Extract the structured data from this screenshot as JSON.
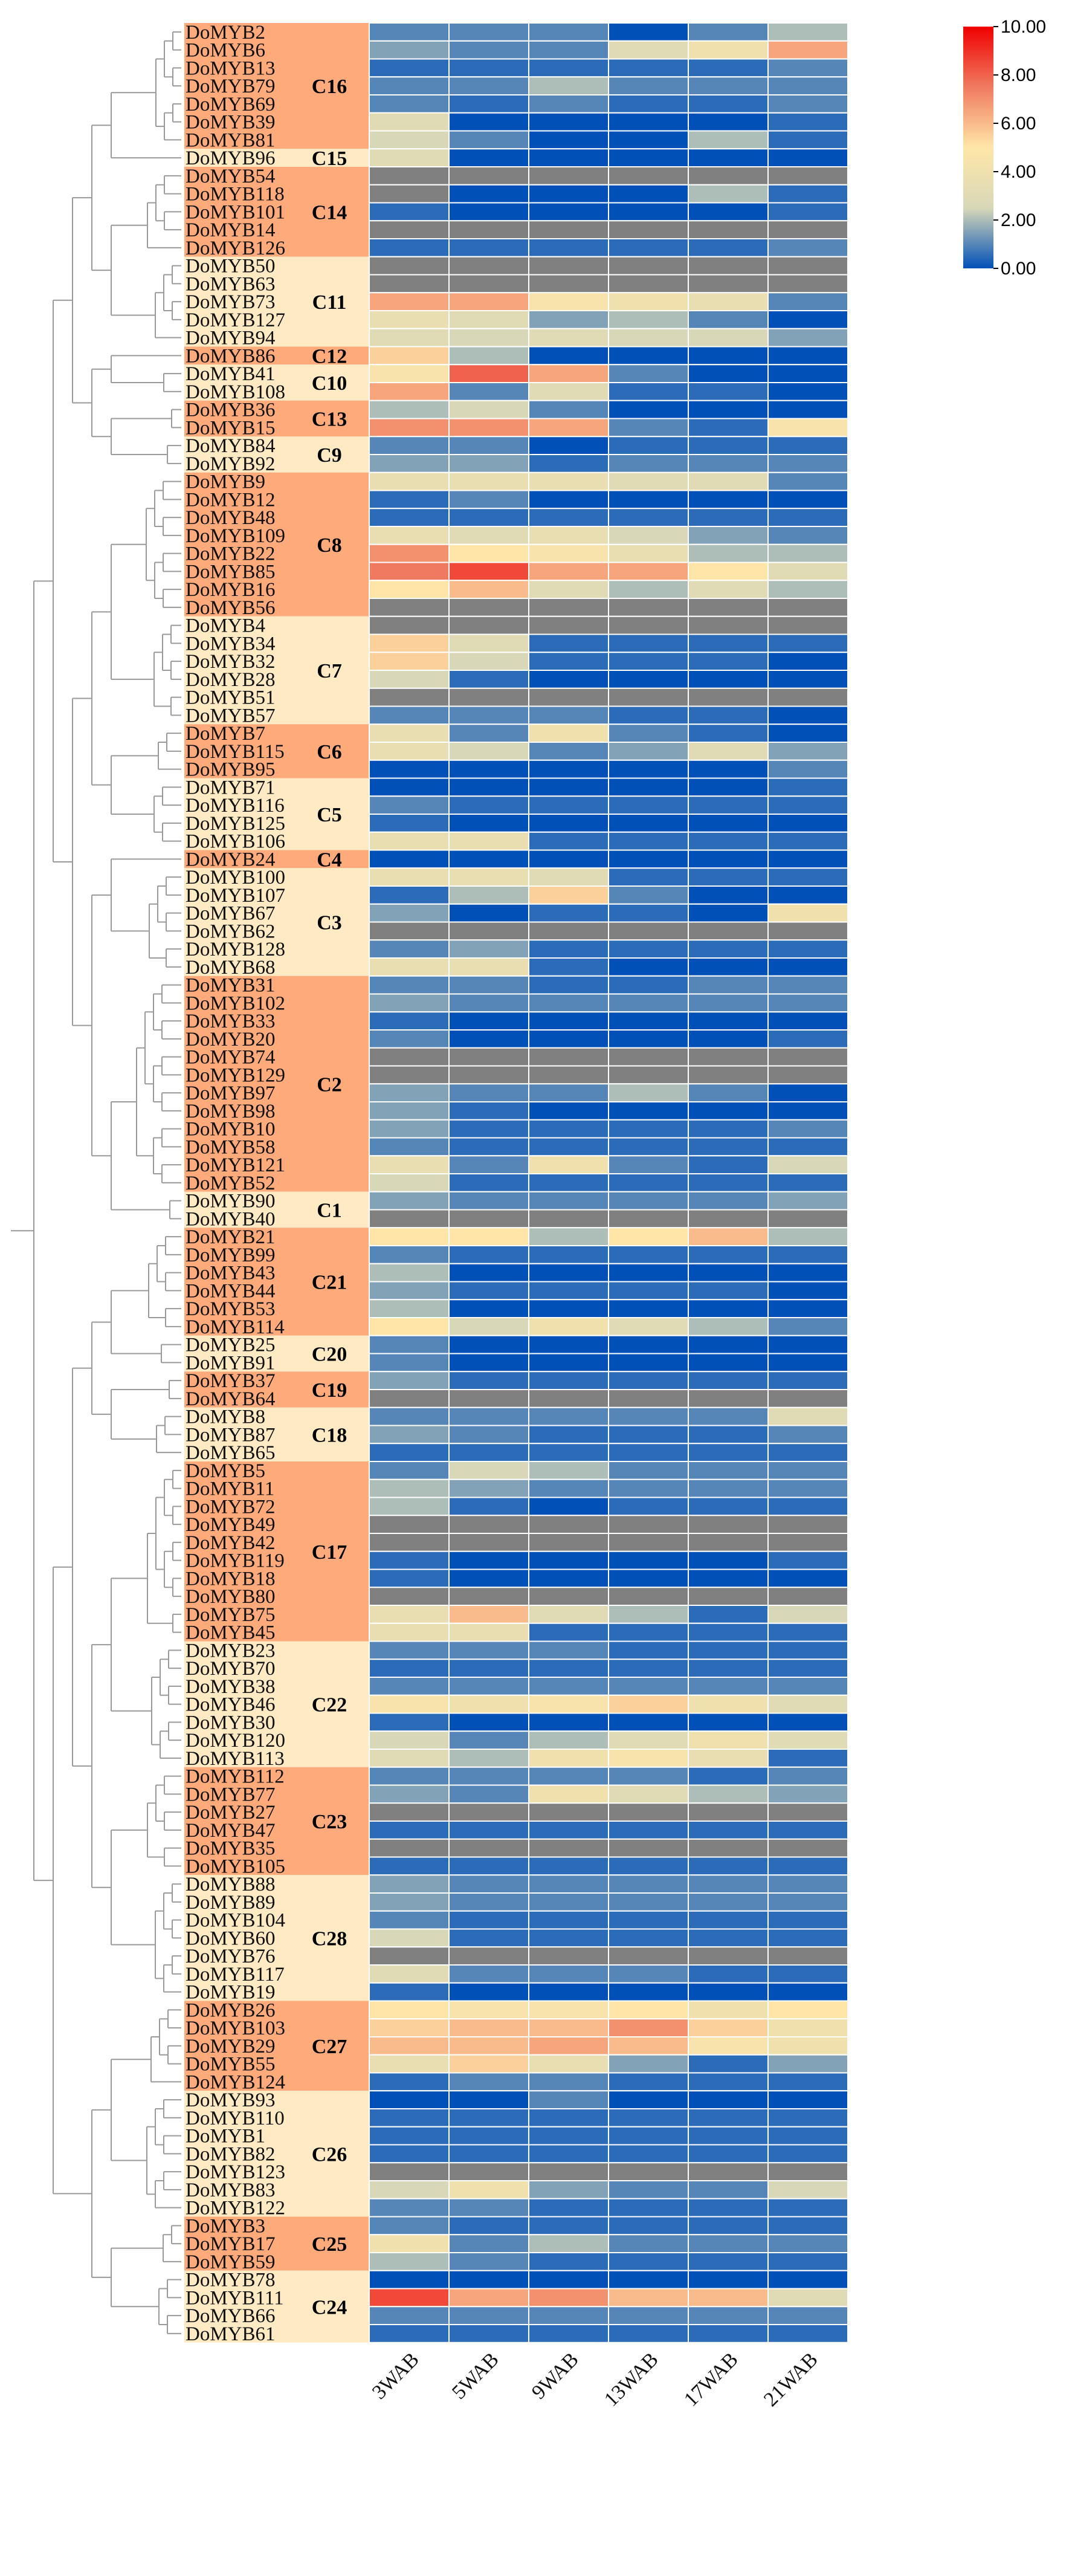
{
  "chart_data": {
    "type": "heatmap",
    "title": "",
    "columns": [
      "3WAB",
      "5WAB",
      "9WAB",
      "13WAB",
      "17WAB",
      "21WAB"
    ],
    "colorbar": {
      "min": 0,
      "max": 10,
      "ticks": [
        "0.00",
        "2.00",
        "4.00",
        "6.00",
        "8.00",
        "10.00"
      ],
      "colors": [
        "#0050b8",
        "#d8d8b8",
        "#ffe6a8",
        "#f07a60",
        "#f00000"
      ]
    },
    "missing_color": "#808080",
    "cluster_colors": {
      "dark": "#ffaa7a",
      "light": "#ffeac4"
    },
    "clusters": [
      {
        "label": "C16",
        "tone": "dark",
        "rows": [
          "DoMYB2",
          "DoMYB6",
          "DoMYB13",
          "DoMYB79",
          "DoMYB69",
          "DoMYB39",
          "DoMYB81"
        ]
      },
      {
        "label": "C15",
        "tone": "light",
        "rows": [
          "DoMYB96"
        ]
      },
      {
        "label": "C14",
        "tone": "dark",
        "rows": [
          "DoMYB54",
          "DoMYB118",
          "DoMYB101",
          "DoMYB14",
          "DoMYB126"
        ]
      },
      {
        "label": "C11",
        "tone": "light",
        "rows": [
          "DoMYB50",
          "DoMYB63",
          "DoMYB73",
          "DoMYB127",
          "DoMYB94"
        ]
      },
      {
        "label": "C12",
        "tone": "dark",
        "rows": [
          "DoMYB86"
        ]
      },
      {
        "label": "C10",
        "tone": "light",
        "rows": [
          "DoMYB41",
          "DoMYB108"
        ]
      },
      {
        "label": "C13",
        "tone": "dark",
        "rows": [
          "DoMYB36",
          "DoMYB15"
        ]
      },
      {
        "label": "C9",
        "tone": "light",
        "rows": [
          "DoMYB84",
          "DoMYB92"
        ]
      },
      {
        "label": "C8",
        "tone": "dark",
        "rows": [
          "DoMYB9",
          "DoMYB12",
          "DoMYB48",
          "DoMYB109",
          "DoMYB22",
          "DoMYB85",
          "DoMYB16",
          "DoMYB56"
        ]
      },
      {
        "label": "C7",
        "tone": "light",
        "rows": [
          "DoMYB4",
          "DoMYB34",
          "DoMYB32",
          "DoMYB28",
          "DoMYB51",
          "DoMYB57"
        ]
      },
      {
        "label": "C6",
        "tone": "dark",
        "rows": [
          "DoMYB7",
          "DoMYB115",
          "DoMYB95"
        ]
      },
      {
        "label": "C5",
        "tone": "light",
        "rows": [
          "DoMYB71",
          "DoMYB116",
          "DoMYB125",
          "DoMYB106"
        ]
      },
      {
        "label": "C4",
        "tone": "dark",
        "rows": [
          "DoMYB24"
        ]
      },
      {
        "label": "C3",
        "tone": "light",
        "rows": [
          "DoMYB100",
          "DoMYB107",
          "DoMYB67",
          "DoMYB62",
          "DoMYB128",
          "DoMYB68"
        ]
      },
      {
        "label": "C2",
        "tone": "dark",
        "rows": [
          "DoMYB31",
          "DoMYB102",
          "DoMYB33",
          "DoMYB20",
          "DoMYB74",
          "DoMYB129",
          "DoMYB97",
          "DoMYB98",
          "DoMYB10",
          "DoMYB58",
          "DoMYB121",
          "DoMYB52"
        ]
      },
      {
        "label": "C1",
        "tone": "light",
        "rows": [
          "DoMYB90",
          "DoMYB40"
        ]
      },
      {
        "label": "C21",
        "tone": "dark",
        "rows": [
          "DoMYB21",
          "DoMYB99",
          "DoMYB43",
          "DoMYB44",
          "DoMYB53",
          "DoMYB114"
        ]
      },
      {
        "label": "C20",
        "tone": "light",
        "rows": [
          "DoMYB25",
          "DoMYB91"
        ]
      },
      {
        "label": "C19",
        "tone": "dark",
        "rows": [
          "DoMYB37",
          "DoMYB64"
        ]
      },
      {
        "label": "C18",
        "tone": "light",
        "rows": [
          "DoMYB8",
          "DoMYB87",
          "DoMYB65"
        ]
      },
      {
        "label": "C17",
        "tone": "dark",
        "rows": [
          "DoMYB5",
          "DoMYB11",
          "DoMYB72",
          "DoMYB49",
          "DoMYB42",
          "DoMYB119",
          "DoMYB18",
          "DoMYB80",
          "DoMYB75",
          "DoMYB45"
        ]
      },
      {
        "label": "C22",
        "tone": "light",
        "rows": [
          "DoMYB23",
          "DoMYB70",
          "DoMYB38",
          "DoMYB46",
          "DoMYB30",
          "DoMYB120",
          "DoMYB113"
        ]
      },
      {
        "label": "C23",
        "tone": "dark",
        "rows": [
          "DoMYB112",
          "DoMYB77",
          "DoMYB27",
          "DoMYB47",
          "DoMYB35",
          "DoMYB105"
        ]
      },
      {
        "label": "C28",
        "tone": "light",
        "rows": [
          "DoMYB88",
          "DoMYB89",
          "DoMYB104",
          "DoMYB60",
          "DoMYB76",
          "DoMYB117",
          "DoMYB19"
        ]
      },
      {
        "label": "C27",
        "tone": "dark",
        "rows": [
          "DoMYB26",
          "DoMYB103",
          "DoMYB29",
          "DoMYB55",
          "DoMYB124"
        ]
      },
      {
        "label": "C26",
        "tone": "light",
        "rows": [
          "DoMYB93",
          "DoMYB110",
          "DoMYB1",
          "DoMYB82",
          "DoMYB123",
          "DoMYB83",
          "DoMYB122"
        ]
      },
      {
        "label": "C25",
        "tone": "dark",
        "rows": [
          "DoMYB3",
          "DoMYB17",
          "DoMYB59"
        ]
      },
      {
        "label": "C24",
        "tone": "light",
        "rows": [
          "DoMYB78",
          "DoMYB111",
          "DoMYB66",
          "DoMYB61"
        ]
      }
    ],
    "values": {
      "DoMYB2": [
        1,
        1,
        1,
        0,
        1,
        2
      ],
      "DoMYB6": [
        1.5,
        1,
        1,
        3,
        4,
        6.5
      ],
      "DoMYB13": [
        0.5,
        0.5,
        0.5,
        0.5,
        0.5,
        1
      ],
      "DoMYB79": [
        1,
        1,
        2,
        1,
        1,
        1
      ],
      "DoMYB69": [
        1,
        0.5,
        1,
        0.5,
        0.5,
        1
      ],
      "DoMYB39": [
        3,
        0,
        0,
        0,
        0,
        0.5
      ],
      "DoMYB81": [
        2.5,
        1,
        0,
        0,
        2,
        0.5
      ],
      "DoMYB96": [
        3,
        0,
        0,
        0,
        0,
        0
      ],
      "DoMYB54": [
        null,
        null,
        null,
        null,
        null,
        null
      ],
      "DoMYB118": [
        null,
        0,
        0,
        0,
        2,
        0.5
      ],
      "DoMYB101": [
        0.5,
        0,
        0,
        0,
        0,
        0.5
      ],
      "DoMYB14": [
        null,
        null,
        null,
        null,
        null,
        null
      ],
      "DoMYB126": [
        0.5,
        0.5,
        0.5,
        0.5,
        0.5,
        1
      ],
      "DoMYB50": [
        null,
        null,
        null,
        null,
        null,
        null
      ],
      "DoMYB63": [
        null,
        null,
        null,
        null,
        null,
        null
      ],
      "DoMYB73": [
        6.5,
        6.5,
        4.5,
        4,
        3.5,
        1
      ],
      "DoMYB127": [
        3.5,
        3,
        1.5,
        2,
        1,
        0
      ],
      "DoMYB94": [
        3,
        2.5,
        3,
        2.5,
        2.5,
        1.5
      ],
      "DoMYB86": [
        5.5,
        2,
        0,
        0,
        0,
        0
      ],
      "DoMYB41": [
        4.5,
        8,
        6.5,
        1,
        0,
        0
      ],
      "DoMYB108": [
        6.5,
        1,
        3,
        0.5,
        0.5,
        0
      ],
      "DoMYB36": [
        2,
        2.5,
        1,
        0,
        0,
        0
      ],
      "DoMYB15": [
        7,
        7,
        6.5,
        1,
        0.5,
        4.5
      ],
      "DoMYB84": [
        1,
        1,
        0,
        0.5,
        0.5,
        0.5
      ],
      "DoMYB92": [
        1.5,
        1.5,
        0.5,
        1,
        1,
        1
      ],
      "DoMYB9": [
        3.5,
        3.5,
        3.5,
        3,
        3,
        1
      ],
      "DoMYB12": [
        0.5,
        1,
        0,
        0,
        0,
        0
      ],
      "DoMYB48": [
        0.5,
        0.5,
        0.5,
        0.5,
        0.5,
        0.5
      ],
      "DoMYB109": [
        3.5,
        3,
        3.5,
        2.5,
        1.5,
        1
      ],
      "DoMYB22": [
        7,
        5,
        4.5,
        3.5,
        2,
        2
      ],
      "DoMYB85": [
        7.5,
        8.5,
        6.5,
        6.5,
        5,
        3
      ],
      "DoMYB16": [
        5,
        6,
        3,
        2,
        3,
        2
      ],
      "DoMYB56": [
        null,
        null,
        null,
        null,
        null,
        null
      ],
      "DoMYB4": [
        null,
        null,
        null,
        null,
        null,
        null
      ],
      "DoMYB34": [
        5.5,
        3,
        0.5,
        0.5,
        0.5,
        0.5
      ],
      "DoMYB32": [
        5.5,
        2.5,
        0.5,
        0.5,
        0.5,
        0
      ],
      "DoMYB28": [
        2.5,
        0.5,
        0,
        0,
        0,
        0
      ],
      "DoMYB51": [
        null,
        null,
        null,
        null,
        null,
        null
      ],
      "DoMYB57": [
        1,
        1,
        1,
        0.5,
        0.5,
        0
      ],
      "DoMYB7": [
        3.5,
        1,
        4,
        1,
        0.5,
        0
      ],
      "DoMYB115": [
        3.5,
        2.5,
        1,
        1.5,
        3,
        1.5
      ],
      "DoMYB95": [
        0,
        0,
        0,
        0,
        0,
        1
      ],
      "DoMYB71": [
        0,
        0,
        0,
        0,
        0,
        0.5
      ],
      "DoMYB116": [
        1,
        0.5,
        0.5,
        0.5,
        0.5,
        0.5
      ],
      "DoMYB125": [
        0.5,
        0,
        0,
        0,
        0,
        0
      ],
      "DoMYB106": [
        3.5,
        3.5,
        0.5,
        0.5,
        0.5,
        0.5
      ],
      "DoMYB24": [
        0,
        0,
        0,
        0,
        0,
        0
      ],
      "DoMYB100": [
        3.5,
        3.5,
        3,
        0.5,
        0.5,
        0.5
      ],
      "DoMYB107": [
        0.5,
        2,
        5.5,
        1,
        0,
        0
      ],
      "DoMYB67": [
        1.5,
        0,
        0.5,
        0.5,
        0,
        4
      ],
      "DoMYB62": [
        null,
        null,
        null,
        null,
        null,
        null
      ],
      "DoMYB128": [
        1,
        1.5,
        0.5,
        0.5,
        0.5,
        0.5
      ],
      "DoMYB68": [
        3.5,
        3.5,
        0.5,
        0,
        0,
        0
      ],
      "DoMYB31": [
        1,
        1,
        0.5,
        0.5,
        1,
        1
      ],
      "DoMYB102": [
        1.5,
        1,
        1,
        1,
        1,
        1
      ],
      "DoMYB33": [
        0.5,
        0,
        0,
        0,
        0,
        0
      ],
      "DoMYB20": [
        1,
        0,
        0,
        0,
        0,
        0.5
      ],
      "DoMYB74": [
        null,
        null,
        null,
        null,
        null,
        null
      ],
      "DoMYB129": [
        null,
        null,
        null,
        null,
        null,
        null
      ],
      "DoMYB97": [
        1.5,
        1,
        1,
        2,
        1,
        0
      ],
      "DoMYB98": [
        1.5,
        0.5,
        0,
        0,
        0,
        0
      ],
      "DoMYB10": [
        1.5,
        0.5,
        0.5,
        0.5,
        0.5,
        1
      ],
      "DoMYB58": [
        1,
        0.5,
        0.5,
        0.5,
        0.5,
        0.5
      ],
      "DoMYB121": [
        3.5,
        1,
        4,
        1,
        0.5,
        2.5
      ],
      "DoMYB52": [
        2.5,
        0.5,
        0.5,
        0.5,
        0.5,
        0.5
      ],
      "DoMYB90": [
        1.5,
        1,
        1,
        1,
        1,
        1.5
      ],
      "DoMYB40": [
        null,
        null,
        null,
        null,
        null,
        null
      ],
      "DoMYB21": [
        5,
        5,
        2,
        5,
        6,
        2
      ],
      "DoMYB99": [
        1,
        0.5,
        0.5,
        0.5,
        0.5,
        0.5
      ],
      "DoMYB43": [
        2,
        0,
        0,
        0,
        0,
        0
      ],
      "DoMYB44": [
        1.5,
        0.5,
        0.5,
        0.5,
        0.5,
        0
      ],
      "DoMYB53": [
        2,
        0,
        0,
        0,
        0,
        0
      ],
      "DoMYB114": [
        5,
        2.5,
        4,
        3,
        2,
        1
      ],
      "DoMYB25": [
        1,
        0,
        0,
        0,
        0,
        0
      ],
      "DoMYB91": [
        1,
        0,
        0,
        0,
        0,
        0
      ],
      "DoMYB37": [
        1.5,
        0.5,
        0.5,
        0.5,
        0.5,
        0.5
      ],
      "DoMYB64": [
        null,
        null,
        null,
        null,
        null,
        null
      ],
      "DoMYB8": [
        1,
        1,
        1,
        1,
        1,
        3
      ],
      "DoMYB87": [
        1.5,
        1,
        0.5,
        0.5,
        0.5,
        1
      ],
      "DoMYB65": [
        0.5,
        0.5,
        0.5,
        0.5,
        0.5,
        0.5
      ],
      "DoMYB5": [
        1,
        2.5,
        2,
        1,
        1,
        1
      ],
      "DoMYB11": [
        2,
        1.5,
        1,
        1,
        1,
        1
      ],
      "DoMYB72": [
        2,
        0.5,
        0,
        0.5,
        0.5,
        0.5
      ],
      "DoMYB49": [
        null,
        null,
        null,
        null,
        null,
        null
      ],
      "DoMYB42": [
        null,
        null,
        null,
        null,
        null,
        null
      ],
      "DoMYB119": [
        0.5,
        0,
        0,
        0,
        0,
        0.5
      ],
      "DoMYB18": [
        0.5,
        0,
        0,
        0,
        0,
        0
      ],
      "DoMYB80": [
        null,
        null,
        null,
        null,
        null,
        null
      ],
      "DoMYB75": [
        3.5,
        6,
        3,
        2,
        0.5,
        2.5
      ],
      "DoMYB45": [
        3.5,
        3.5,
        0.5,
        0.5,
        0.5,
        0.5
      ],
      "DoMYB23": [
        1,
        1,
        1,
        0.5,
        0.5,
        0.5
      ],
      "DoMYB70": [
        0.5,
        0.5,
        0.5,
        0.5,
        0.5,
        0.5
      ],
      "DoMYB38": [
        1,
        1,
        1,
        1,
        1,
        1
      ],
      "DoMYB46": [
        4.5,
        4,
        4.5,
        5.5,
        4,
        3
      ],
      "DoMYB30": [
        0.5,
        0,
        0,
        0,
        0,
        0
      ],
      "DoMYB120": [
        2.5,
        1,
        2,
        3,
        4,
        3
      ],
      "DoMYB113": [
        3,
        2,
        4,
        4.5,
        3.5,
        0.5
      ],
      "DoMYB112": [
        1,
        1,
        1,
        1,
        0.5,
        1
      ],
      "DoMYB77": [
        1.5,
        1,
        4,
        3,
        2,
        1.5
      ],
      "DoMYB27": [
        null,
        null,
        null,
        null,
        null,
        null
      ],
      "DoMYB47": [
        0.5,
        0.5,
        0.5,
        0.5,
        0.5,
        0.5
      ],
      "DoMYB35": [
        null,
        null,
        null,
        null,
        null,
        null
      ],
      "DoMYB105": [
        0.5,
        0.5,
        0.5,
        0.5,
        0.5,
        0.5
      ],
      "DoMYB88": [
        1.5,
        1,
        1,
        1,
        1,
        1
      ],
      "DoMYB89": [
        1.5,
        1,
        1,
        1,
        1,
        1
      ],
      "DoMYB104": [
        1,
        0.5,
        0.5,
        0.5,
        0.5,
        0.5
      ],
      "DoMYB60": [
        2.5,
        0.5,
        0.5,
        0.5,
        0.5,
        0.5
      ],
      "DoMYB76": [
        null,
        null,
        null,
        null,
        null,
        null
      ],
      "DoMYB117": [
        3,
        1,
        1,
        1,
        0.5,
        0.5
      ],
      "DoMYB19": [
        0.5,
        0,
        0,
        0,
        0,
        0
      ],
      "DoMYB26": [
        5,
        4.5,
        4.5,
        5,
        4,
        5
      ],
      "DoMYB103": [
        5.5,
        6,
        6,
        7,
        5.5,
        4
      ],
      "DoMYB29": [
        6,
        6,
        6.5,
        6,
        4.5,
        4
      ],
      "DoMYB55": [
        3.5,
        5.5,
        3.5,
        1.5,
        0.5,
        1.5
      ],
      "DoMYB124": [
        0.5,
        1,
        1,
        0.5,
        0.5,
        0.5
      ],
      "DoMYB93": [
        0,
        0,
        1,
        0,
        0,
        0
      ],
      "DoMYB110": [
        0.5,
        0.5,
        0.5,
        0.5,
        0.5,
        0.5
      ],
      "DoMYB1": [
        0.5,
        0.5,
        0.5,
        0.5,
        0.5,
        0.5
      ],
      "DoMYB82": [
        0.5,
        0.5,
        0.5,
        0.5,
        0.5,
        0.5
      ],
      "DoMYB123": [
        null,
        null,
        null,
        null,
        null,
        null
      ],
      "DoMYB83": [
        2.5,
        4,
        1.5,
        1,
        1,
        2.5
      ],
      "DoMYB122": [
        1,
        1,
        0.5,
        0.5,
        0.5,
        0.5
      ],
      "DoMYB3": [
        1,
        0.5,
        0.5,
        0.5,
        0.5,
        0.5
      ],
      "DoMYB17": [
        4,
        1,
        2,
        1,
        1,
        1
      ],
      "DoMYB59": [
        2,
        1,
        0.5,
        0.5,
        0.5,
        0.5
      ],
      "DoMYB78": [
        0,
        0,
        0,
        0,
        0,
        0
      ],
      "DoMYB111": [
        8.5,
        6.5,
        7,
        6,
        6,
        3
      ],
      "DoMYB66": [
        1,
        1,
        1,
        1,
        1,
        1
      ],
      "DoMYB61": [
        0.5,
        0.5,
        0.5,
        0.5,
        0.5,
        0.5
      ]
    }
  }
}
